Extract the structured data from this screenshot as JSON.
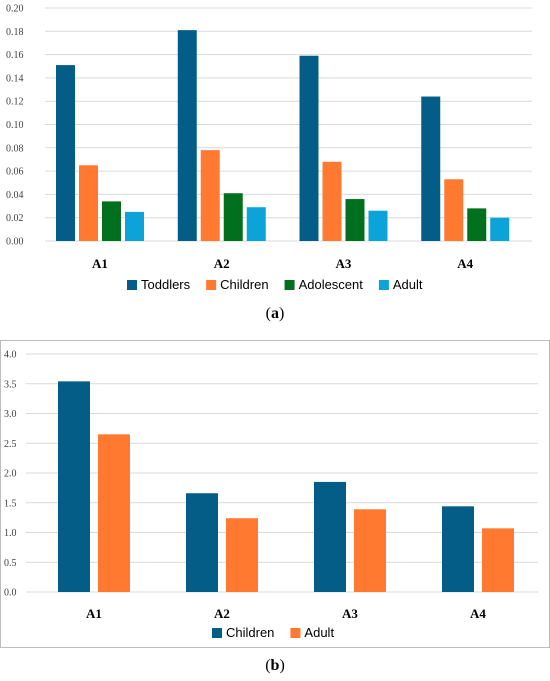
{
  "chart_data": [
    {
      "type": "bar",
      "panel_label": "a",
      "categories": [
        "A1",
        "A2",
        "A3",
        "A4"
      ],
      "series": [
        {
          "name": "Toddlers",
          "color": "#045d86",
          "values": [
            0.151,
            0.181,
            0.159,
            0.124
          ]
        },
        {
          "name": "Children",
          "color": "#ff7a30",
          "values": [
            0.065,
            0.078,
            0.068,
            0.053
          ]
        },
        {
          "name": "Adolescent",
          "color": "#00701f",
          "values": [
            0.034,
            0.041,
            0.036,
            0.028
          ]
        },
        {
          "name": "Adult",
          "color": "#0ba3d8",
          "values": [
            0.025,
            0.029,
            0.026,
            0.02
          ]
        }
      ],
      "ylim": [
        0,
        0.2
      ],
      "yticks": [
        "0.00",
        "0.02",
        "0.04",
        "0.06",
        "0.08",
        "0.10",
        "0.12",
        "0.14",
        "0.16",
        "0.18",
        "0.20"
      ],
      "grid": true,
      "legend": "bottom"
    },
    {
      "type": "bar",
      "panel_label": "b",
      "categories": [
        "A1",
        "A2",
        "A3",
        "A4"
      ],
      "series": [
        {
          "name": "Children",
          "color": "#045d86",
          "values": [
            3.54,
            1.66,
            1.85,
            1.44
          ]
        },
        {
          "name": "Adult",
          "color": "#ff7a30",
          "values": [
            2.65,
            1.24,
            1.39,
            1.07
          ]
        }
      ],
      "ylim": [
        0,
        4.0
      ],
      "yticks": [
        "0.0",
        "0.5",
        "1.0",
        "1.5",
        "2.0",
        "2.5",
        "3.0",
        "3.5",
        "4.0"
      ],
      "grid": true,
      "legend": "bottom"
    }
  ]
}
